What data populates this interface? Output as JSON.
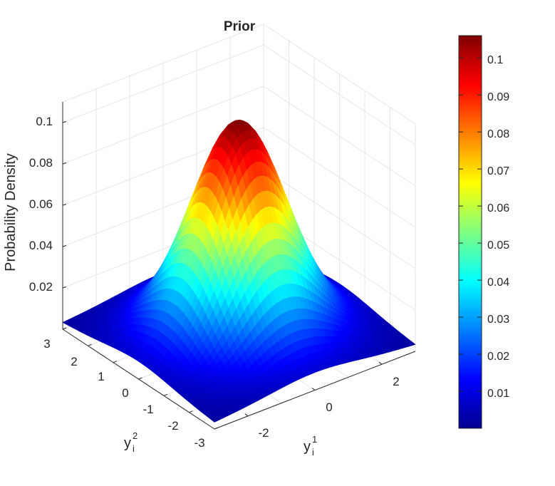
{
  "chart_data": {
    "type": "surface",
    "title": "Prior",
    "xlabel": {
      "base": "y",
      "sub": "i",
      "sup": "1"
    },
    "ylabel": {
      "base": "y",
      "sub": "i",
      "sup": "2"
    },
    "zlabel": "Probability Density",
    "x_ticks": [
      "-2",
      "0",
      "2"
    ],
    "y_ticks": [
      "3",
      "2",
      "1",
      "0",
      "-1",
      "-2",
      "-3"
    ],
    "z_ticks": [
      "0.02",
      "0.04",
      "0.06",
      "0.08",
      "0.1"
    ],
    "xlim": [
      -3,
      3
    ],
    "ylim": [
      -3,
      3
    ],
    "zlim": [
      0,
      0.11
    ],
    "peak_value": 0.106,
    "colormap": "jet",
    "colorbar": {
      "range": [
        0,
        0.106
      ],
      "ticks": [
        "0.01",
        "0.02",
        "0.03",
        "0.04",
        "0.05",
        "0.06",
        "0.07",
        "0.08",
        "0.09",
        "0.1"
      ]
    },
    "grid": true
  }
}
